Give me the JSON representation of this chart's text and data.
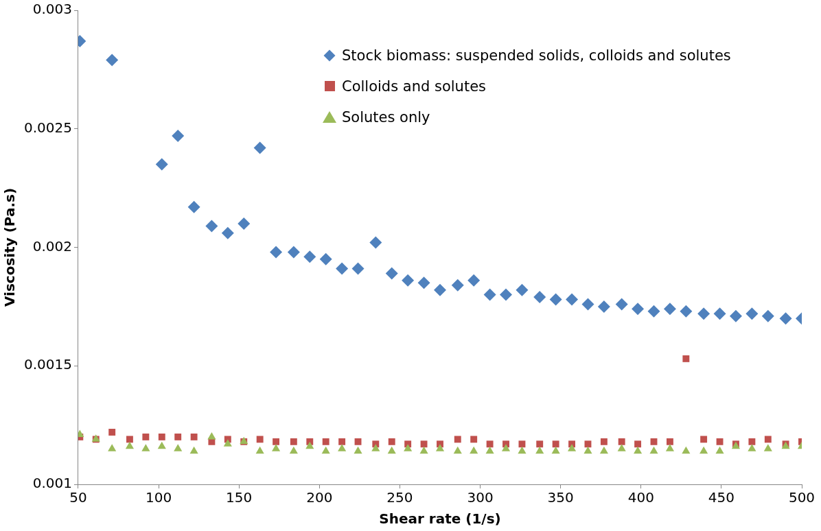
{
  "chart_data": {
    "type": "scatter",
    "xlabel": "Shear rate (1/s)",
    "ylabel": "Viscosity (Pa.s)",
    "x": [
      51,
      61,
      71,
      82,
      92,
      102,
      112,
      122,
      133,
      143,
      153,
      163,
      173,
      184,
      194,
      204,
      214,
      224,
      235,
      245,
      255,
      265,
      275,
      286,
      296,
      306,
      316,
      326,
      337,
      347,
      357,
      367,
      377,
      388,
      398,
      408,
      418,
      428,
      439,
      449,
      459,
      469,
      479,
      490,
      500
    ],
    "series": [
      {
        "name": "Stock biomass: suspended solids, colloids and solutes",
        "color": "#4f81bd",
        "marker": "diamond",
        "values": [
          0.00287,
          null,
          0.00279,
          null,
          null,
          0.00235,
          0.00247,
          0.00217,
          0.00209,
          0.00206,
          0.0021,
          0.00242,
          0.00198,
          0.00198,
          0.00196,
          0.00195,
          0.00191,
          0.00191,
          0.00202,
          0.00189,
          0.00186,
          0.00185,
          0.00182,
          0.00184,
          0.00186,
          0.0018,
          0.0018,
          0.00182,
          0.00179,
          0.00178,
          0.00178,
          0.00176,
          0.00175,
          0.00176,
          0.00174,
          0.00173,
          0.00174,
          0.00173,
          0.00172,
          0.00172,
          0.00171,
          0.00172,
          0.00171,
          0.0017,
          0.0017
        ]
      },
      {
        "name": "Colloids and solutes",
        "color": "#c0504d",
        "marker": "square",
        "values": [
          0.0012,
          0.00119,
          0.00122,
          0.00119,
          0.0012,
          0.0012,
          0.0012,
          0.0012,
          0.00118,
          0.00119,
          0.00118,
          0.00119,
          0.00118,
          0.00118,
          0.00118,
          0.00118,
          0.00118,
          0.00118,
          0.00117,
          0.00118,
          0.00117,
          0.00117,
          0.00117,
          0.00119,
          0.00119,
          0.00117,
          0.00117,
          0.00117,
          0.00117,
          0.00117,
          0.00117,
          0.00117,
          0.00118,
          0.00118,
          0.00117,
          0.00118,
          0.00118,
          0.00153,
          0.00119,
          0.00118,
          0.00117,
          0.00118,
          0.00119,
          0.00117,
          0.00118
        ]
      },
      {
        "name": "Solutes only",
        "color": "#9bbb59",
        "marker": "triangle",
        "values": [
          0.00121,
          0.00119,
          0.00115,
          0.00116,
          0.00115,
          0.00116,
          0.00115,
          0.00114,
          0.0012,
          0.00117,
          0.00118,
          0.00114,
          0.00115,
          0.00114,
          0.00116,
          0.00114,
          0.00115,
          0.00114,
          0.00115,
          0.00114,
          0.00115,
          0.00114,
          0.00115,
          0.00114,
          0.00114,
          0.00114,
          0.00115,
          0.00114,
          0.00114,
          0.00114,
          0.00115,
          0.00114,
          0.00114,
          0.00115,
          0.00114,
          0.00114,
          0.00115,
          0.00114,
          0.00114,
          0.00114,
          0.00116,
          0.00115,
          0.00115,
          0.00116,
          0.00116
        ]
      }
    ],
    "xlim": [
      50,
      500
    ],
    "xticks": [
      50,
      100,
      150,
      200,
      250,
      300,
      350,
      400,
      450,
      500
    ],
    "ylim": [
      0.001,
      0.003
    ],
    "yticks": [
      0.001,
      0.0015,
      0.002,
      0.0025,
      0.003
    ],
    "grid": false,
    "legend": "top right"
  }
}
